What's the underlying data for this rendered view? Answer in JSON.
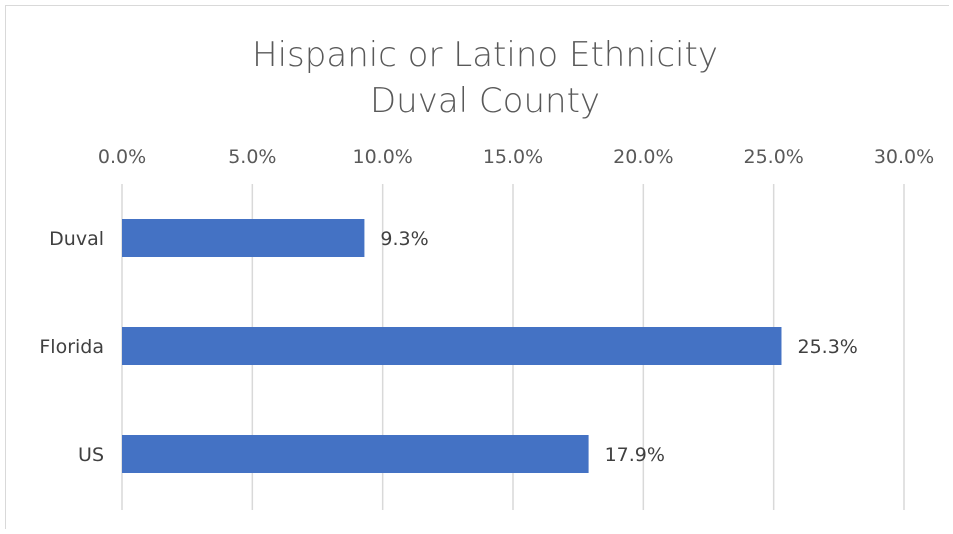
{
  "chart_data": {
    "type": "bar",
    "orientation": "horizontal",
    "title": "Hispanic or Latino Ethnicity",
    "subtitle": "Duval County",
    "categories": [
      "Duval",
      "Florida",
      "US"
    ],
    "values": [
      9.3,
      25.3,
      17.9
    ],
    "data_labels": [
      "9.3%",
      "25.3%",
      "17.9%"
    ],
    "xlim": [
      0,
      30
    ],
    "x_ticks": [
      0,
      5,
      10,
      15,
      20,
      25,
      30
    ],
    "x_tick_labels": [
      "0.0%",
      "5.0%",
      "10.0%",
      "15.0%",
      "20.0%",
      "25.0%",
      "30.0%"
    ],
    "axis_position": "top",
    "grid": true,
    "bar_color": "#4472c4",
    "grid_color": "#d9d9d9"
  }
}
